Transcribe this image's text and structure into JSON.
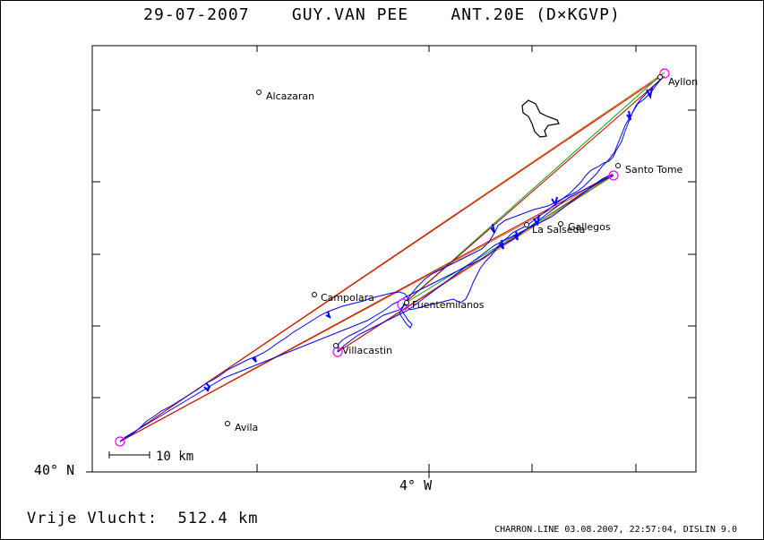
{
  "title": "29-07-2007    GUY.VAN PEE    ANT.20E (D×KGVP)",
  "axis": {
    "lat_label": "40° N",
    "lon_label": "4° W"
  },
  "scale_bar": {
    "label": "10 km"
  },
  "distance": {
    "label": "Vrije Vlucht:",
    "value": "512.4 km"
  },
  "footer": {
    "info": "CHARRON.LINE 03.08.2007, 22:57:04, DISLIN 9.0"
  },
  "places": [
    {
      "name": "Alcazaran"
    },
    {
      "name": "Ayllon"
    },
    {
      "name": "Santo Tome"
    },
    {
      "name": "Gallegos"
    },
    {
      "name": "La Salseda"
    },
    {
      "name": "Campolara"
    },
    {
      "name": "Fuentemilanos"
    },
    {
      "name": "Villacastin"
    },
    {
      "name": "Avila"
    }
  ],
  "colors": {
    "track": "#0000ff",
    "turnpoint": "#ff00ff",
    "leg_orange": "#cc6600",
    "leg_red": "#cc0000",
    "leg_green": "#00aa00"
  }
}
